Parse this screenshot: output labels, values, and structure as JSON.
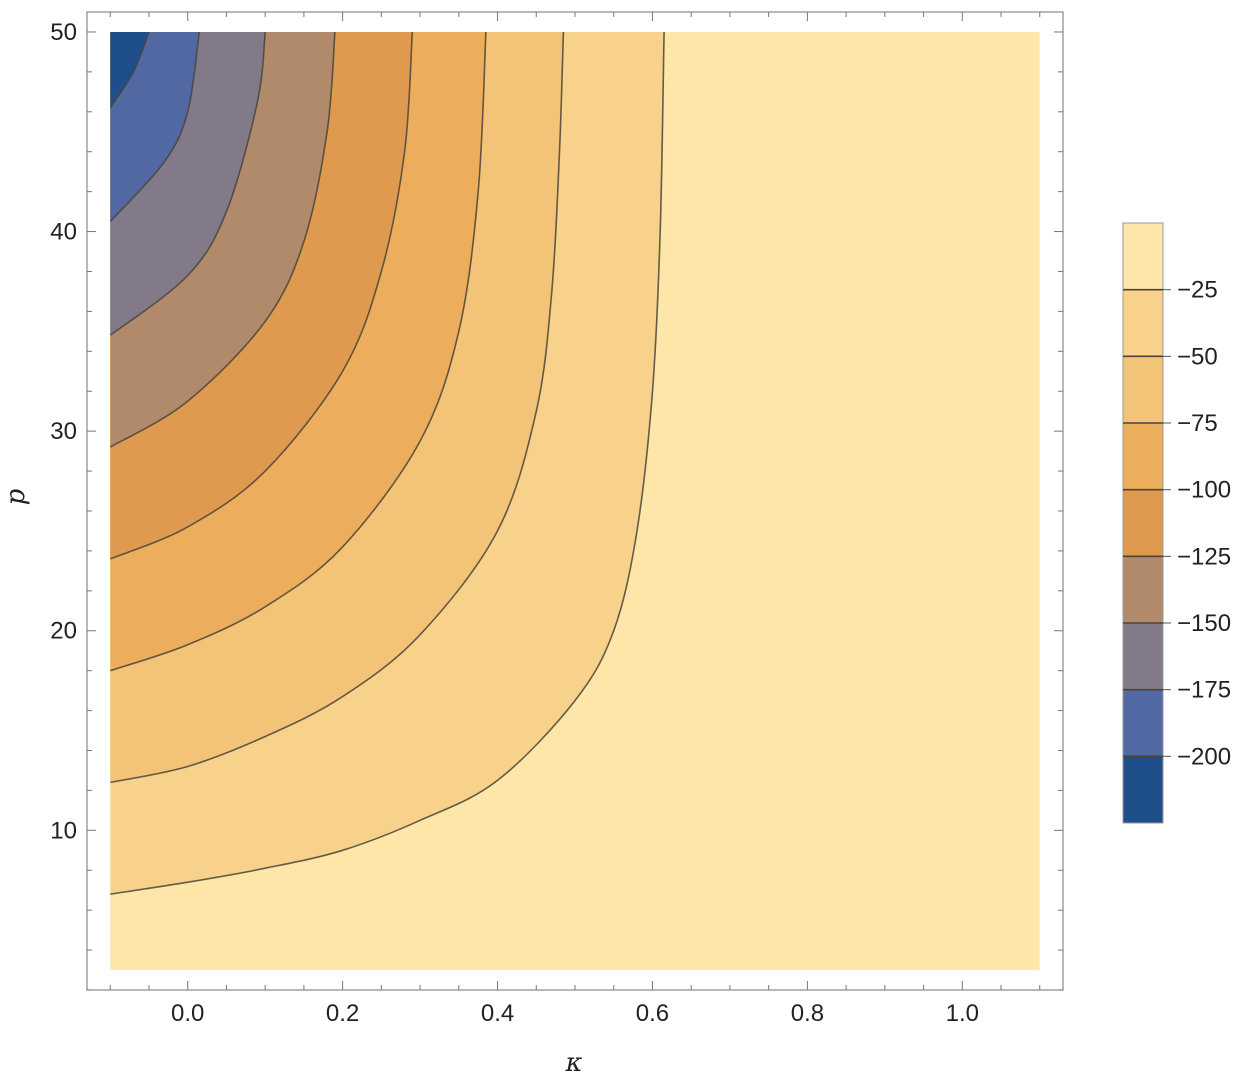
{
  "chart_data": {
    "type": "contour",
    "title": "",
    "xlabel": "κ",
    "ylabel": "p",
    "xlim": [
      -0.13,
      1.13
    ],
    "ylim": [
      2.0,
      51.0
    ],
    "data_xrange": [
      -0.1,
      1.1
    ],
    "data_yrange": [
      3.0,
      50.0
    ],
    "x_ticks": [
      0.0,
      0.2,
      0.4,
      0.6,
      0.8,
      1.0
    ],
    "x_tick_labels": [
      "0.0",
      "0.2",
      "0.4",
      "0.6",
      "0.8",
      "1.0"
    ],
    "y_ticks": [
      10,
      20,
      30,
      40,
      50
    ],
    "y_tick_labels": [
      "10",
      "20",
      "30",
      "40",
      "50"
    ],
    "contour_levels": [
      -200,
      -175,
      -150,
      -125,
      -100,
      -75,
      -50,
      -25
    ],
    "contour_lines": [
      {
        "level": -25,
        "points": [
          [
            -0.1,
            6.8
          ],
          [
            0.0,
            7.4
          ],
          [
            0.1,
            8.1
          ],
          [
            0.2,
            9.0
          ],
          [
            0.3,
            10.5
          ],
          [
            0.4,
            12.5
          ],
          [
            0.5,
            16.5
          ],
          [
            0.55,
            20.0
          ],
          [
            0.58,
            25.0
          ],
          [
            0.6,
            32.0
          ],
          [
            0.61,
            40.0
          ],
          [
            0.615,
            50.0
          ]
        ]
      },
      {
        "level": -50,
        "points": [
          [
            -0.1,
            12.4
          ],
          [
            0.0,
            13.2
          ],
          [
            0.1,
            14.7
          ],
          [
            0.2,
            16.7
          ],
          [
            0.3,
            19.8
          ],
          [
            0.4,
            25.0
          ],
          [
            0.45,
            31.0
          ],
          [
            0.47,
            37.0
          ],
          [
            0.48,
            44.0
          ],
          [
            0.485,
            50.0
          ]
        ]
      },
      {
        "level": -75,
        "points": [
          [
            -0.1,
            18.0
          ],
          [
            0.0,
            19.3
          ],
          [
            0.1,
            21.2
          ],
          [
            0.2,
            24.2
          ],
          [
            0.3,
            29.5
          ],
          [
            0.35,
            35.0
          ],
          [
            0.375,
            42.0
          ],
          [
            0.385,
            50.0
          ]
        ]
      },
      {
        "level": -100,
        "points": [
          [
            -0.1,
            23.6
          ],
          [
            0.0,
            25.2
          ],
          [
            0.1,
            28.0
          ],
          [
            0.2,
            33.0
          ],
          [
            0.25,
            38.0
          ],
          [
            0.28,
            44.0
          ],
          [
            0.29,
            50.0
          ]
        ]
      },
      {
        "level": -125,
        "points": [
          [
            -0.1,
            29.2
          ],
          [
            0.0,
            31.5
          ],
          [
            0.1,
            35.5
          ],
          [
            0.15,
            39.5
          ],
          [
            0.18,
            45.0
          ],
          [
            0.19,
            50.0
          ]
        ]
      },
      {
        "level": -150,
        "points": [
          [
            -0.1,
            34.8
          ],
          [
            0.0,
            37.8
          ],
          [
            0.05,
            41.0
          ],
          [
            0.09,
            46.5
          ],
          [
            0.1,
            50.0
          ]
        ]
      },
      {
        "level": -175,
        "points": [
          [
            -0.1,
            40.5
          ],
          [
            -0.03,
            43.5
          ],
          [
            0.0,
            46.0
          ],
          [
            0.015,
            50.0
          ]
        ]
      },
      {
        "level": -200,
        "points": [
          [
            -0.1,
            46.2
          ],
          [
            -0.07,
            48.0
          ],
          [
            -0.05,
            50.0
          ]
        ]
      }
    ],
    "colorbar": {
      "levels": [
        -200,
        -175,
        -150,
        -125,
        -100,
        -75,
        -50,
        -25
      ],
      "labels": [
        "−25",
        "−50",
        "−75",
        "−100",
        "−125",
        "−150",
        "−175",
        "−200"
      ],
      "band_colors": [
        "#1f4f8a",
        "#5168a3",
        "#837a89",
        "#b08a6b",
        "#df9a4f",
        "#ecae5c",
        "#f3c377",
        "#f8d28a",
        "#fde6a8"
      ]
    },
    "grid": false,
    "legend": "colorbar-right"
  }
}
